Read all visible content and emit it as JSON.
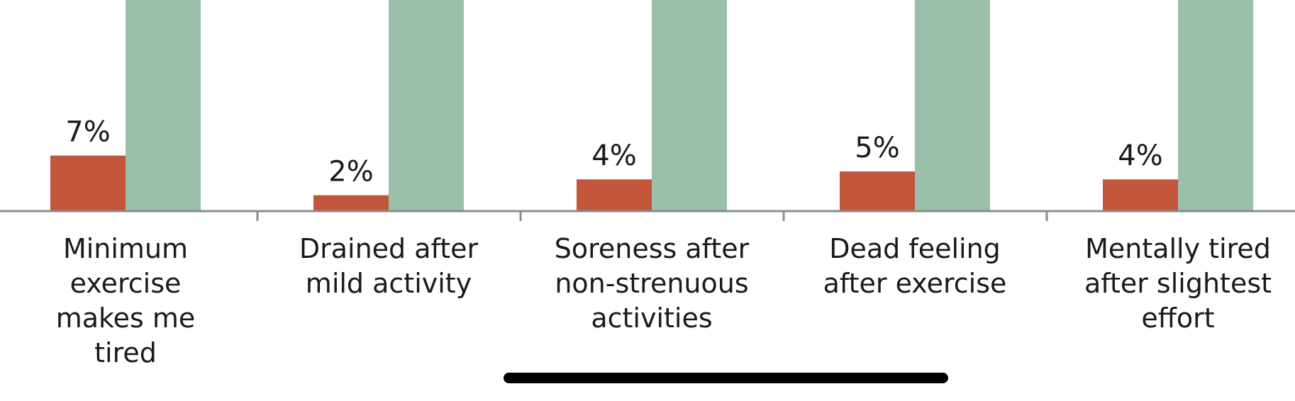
{
  "chart_data": {
    "type": "bar",
    "categories": [
      [
        "Minimum",
        "exercise",
        "makes me",
        "tired"
      ],
      [
        "Drained after",
        "mild activity"
      ],
      [
        "Soreness after",
        "non-strenuous",
        "activities"
      ],
      [
        "Dead feeling",
        "after exercise"
      ],
      [
        "Mentally tired",
        "after slightest",
        "effort"
      ]
    ],
    "series": [
      {
        "values": [
          7,
          2,
          4,
          5,
          4
        ],
        "labels": [
          "7%",
          "2%",
          "4%",
          "5%",
          "4%"
        ],
        "color": "#c2553a"
      },
      {
        "values": [
          null,
          null,
          null,
          null,
          null
        ],
        "labels": [],
        "color": "#9bbfaa"
      }
    ],
    "title": "",
    "xlabel": "",
    "ylabel": "",
    "axis_color": "#8c8c8c",
    "grid": false,
    "legend": "none",
    "note": "Second series bars extend beyond the visible top of the cropped chart; their values are not shown."
  }
}
